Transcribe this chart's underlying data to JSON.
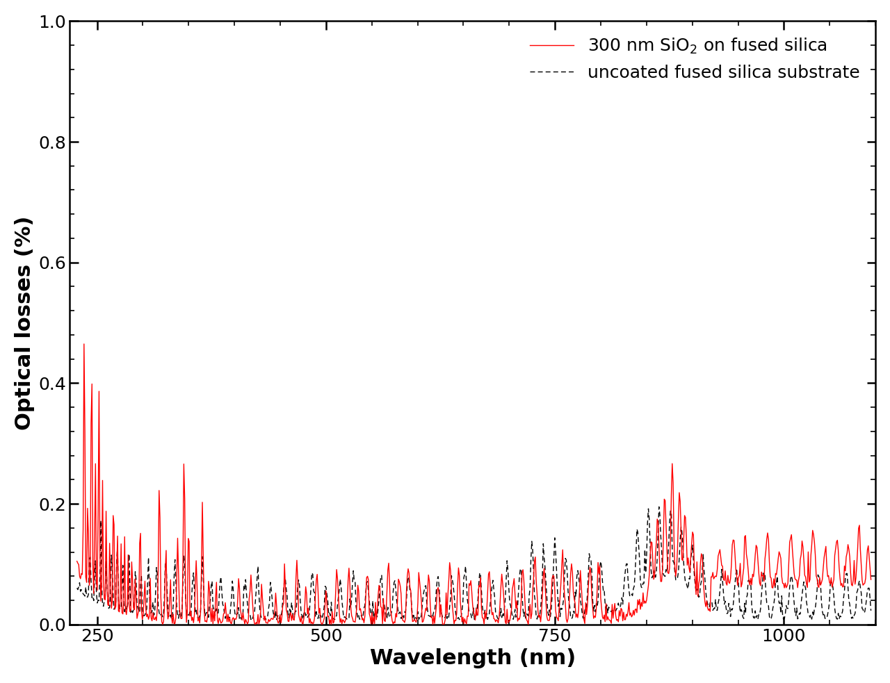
{
  "title": "",
  "xlabel": "Wavelength (nm)",
  "ylabel": "Optical losses (%)",
  "xlim": [
    220,
    1100
  ],
  "ylim": [
    0.0,
    1.0
  ],
  "xticks": [
    250,
    500,
    750,
    1000
  ],
  "yticks": [
    0.0,
    0.2,
    0.4,
    0.6,
    0.8,
    1.0
  ],
  "legend_label_red": "300 nm SiO$_2$ on fused silica",
  "legend_label_black": "uncoated fused silica substrate",
  "red_color": "#ff0000",
  "black_color": "#000000",
  "background_color": "#ffffff",
  "linewidth_red": 1.0,
  "linewidth_black": 1.0,
  "xlabel_fontsize": 22,
  "ylabel_fontsize": 22,
  "tick_fontsize": 18,
  "legend_fontsize": 18
}
